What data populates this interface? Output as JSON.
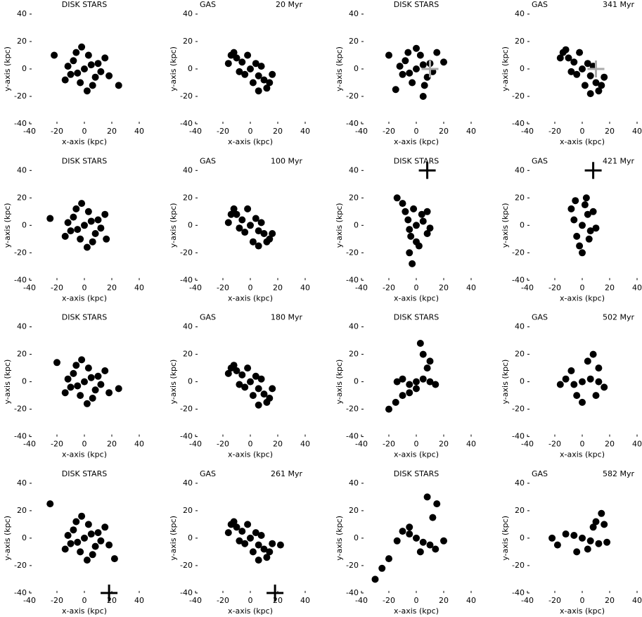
{
  "chart_data": [
    {
      "type": "scatter",
      "title": "DISK STARS",
      "xlabel": "x-axis (kpc)",
      "ylabel": "y-axis (kpc)",
      "xlim": [
        -40,
        40
      ],
      "ylim": [
        -40,
        40
      ],
      "xticks": [
        -40,
        -20,
        0,
        20,
        40
      ],
      "yticks": [
        -40,
        -20,
        0,
        20,
        40
      ],
      "series": [
        {
          "color": "#000000",
          "x": [
            0,
            5,
            -5,
            8,
            -8,
            10,
            -10,
            3,
            -3,
            12,
            -12,
            6,
            -6,
            15,
            -14,
            2,
            -2,
            18,
            -22,
            25
          ],
          "y": [
            0,
            3,
            -3,
            -6,
            6,
            4,
            -4,
            10,
            -10,
            -2,
            2,
            -12,
            12,
            8,
            -8,
            -16,
            16,
            -5,
            10,
            -12
          ]
        }
      ]
    },
    {
      "type": "scatter",
      "title": "GAS",
      "annotation": "20 Myr",
      "xlabel": "x-axis (kpc)",
      "ylabel": "y-axis (kpc)",
      "xlim": [
        -40,
        40
      ],
      "ylim": [
        -40,
        40
      ],
      "xticks": [
        -40,
        -20,
        0,
        20,
        40
      ],
      "yticks": [
        -40,
        -20,
        0,
        20,
        40
      ],
      "series": [
        {
          "color": "#000000",
          "x": [
            0,
            6,
            -6,
            10,
            -10,
            4,
            -4,
            14,
            -14,
            8,
            -8,
            2,
            -2,
            12,
            -12,
            16,
            -16,
            6
          ],
          "y": [
            0,
            -5,
            5,
            -8,
            8,
            4,
            -4,
            -10,
            10,
            2,
            -2,
            -10,
            10,
            -14,
            12,
            -4,
            4,
            -16
          ]
        }
      ]
    },
    {
      "type": "scatter",
      "title": "DISK STARS",
      "xlabel": "x-axis (kpc)",
      "ylabel": "y-axis (kpc)",
      "xlim": [
        -40,
        40
      ],
      "ylim": [
        -40,
        40
      ],
      "xticks": [
        -40,
        -20,
        0,
        20,
        40
      ],
      "yticks": [
        -40,
        -20,
        0,
        20,
        40
      ],
      "series": [
        {
          "color": "#000000",
          "x": [
            0,
            5,
            -5,
            8,
            -8,
            10,
            -10,
            3,
            -3,
            12,
            -12,
            6,
            -6,
            15,
            -20,
            -15,
            5,
            20,
            0
          ],
          "y": [
            0,
            3,
            -3,
            -6,
            6,
            4,
            -4,
            10,
            -10,
            -2,
            2,
            -12,
            12,
            12,
            10,
            -15,
            -20,
            5,
            15
          ]
        }
      ],
      "marker": {
        "x": 10,
        "y": 0,
        "color": "#aaaaaa"
      }
    },
    {
      "type": "scatter",
      "title": "GAS",
      "annotation": "341 Myr",
      "xlabel": "x-axis (kpc)",
      "ylabel": "y-axis (kpc)",
      "xlim": [
        -40,
        40
      ],
      "ylim": [
        -40,
        40
      ],
      "xticks": [
        -40,
        -20,
        0,
        20,
        40
      ],
      "yticks": [
        -40,
        -20,
        0,
        20,
        40
      ],
      "series": [
        {
          "color": "#000000",
          "x": [
            0,
            6,
            -6,
            10,
            -10,
            4,
            -4,
            14,
            -14,
            8,
            -8,
            2,
            -2,
            12,
            -12,
            16,
            -16,
            6
          ],
          "y": [
            0,
            -5,
            5,
            -10,
            8,
            4,
            -4,
            -12,
            12,
            2,
            -2,
            -12,
            12,
            -16,
            14,
            -6,
            8,
            -18
          ]
        }
      ],
      "marker": {
        "x": 10,
        "y": 0,
        "color": "#aaaaaa"
      }
    },
    {
      "type": "scatter",
      "title": "DISK STARS",
      "xlabel": "x-axis (kpc)",
      "ylabel": "y-axis (kpc)",
      "xlim": [
        -40,
        40
      ],
      "ylim": [
        -40,
        40
      ],
      "xticks": [
        -40,
        -20,
        0,
        20,
        40
      ],
      "yticks": [
        -40,
        -20,
        0,
        20,
        40
      ],
      "series": [
        {
          "color": "#000000",
          "x": [
            0,
            5,
            -5,
            8,
            -8,
            10,
            -10,
            3,
            -3,
            12,
            -12,
            6,
            -6,
            15,
            -14,
            2,
            -2,
            16,
            -25
          ],
          "y": [
            0,
            3,
            -3,
            -6,
            6,
            4,
            -4,
            10,
            -10,
            -2,
            2,
            -12,
            12,
            8,
            -8,
            -16,
            16,
            -10,
            5
          ]
        }
      ]
    },
    {
      "type": "scatter",
      "title": "GAS",
      "annotation": "100 Myr",
      "xlabel": "x-axis (kpc)",
      "ylabel": "y-axis (kpc)",
      "xlim": [
        -40,
        40
      ],
      "ylim": [
        -40,
        40
      ],
      "xticks": [
        -40,
        -20,
        0,
        20,
        40
      ],
      "yticks": [
        -40,
        -20,
        0,
        20,
        40
      ],
      "series": [
        {
          "color": "#000000",
          "x": [
            0,
            6,
            -6,
            10,
            -10,
            4,
            -4,
            14,
            -14,
            8,
            -8,
            2,
            -2,
            12,
            -12,
            16,
            -16,
            6
          ],
          "y": [
            0,
            -4,
            4,
            -6,
            8,
            5,
            -5,
            -10,
            8,
            2,
            -2,
            -12,
            12,
            -12,
            12,
            -6,
            2,
            -15
          ]
        }
      ]
    },
    {
      "type": "scatter",
      "title": "DISK STARS",
      "xlabel": "x-axis (kpc)",
      "ylabel": "y-axis (kpc)",
      "xlim": [
        -40,
        40
      ],
      "ylim": [
        -40,
        40
      ],
      "xticks": [
        -40,
        -20,
        0,
        20,
        40
      ],
      "yticks": [
        -40,
        -20,
        0,
        20,
        40
      ],
      "series": [
        {
          "color": "#000000",
          "x": [
            0,
            5,
            -5,
            8,
            -6,
            4,
            -4,
            0,
            -8,
            -10,
            -14,
            -5,
            -3,
            2,
            8,
            -2,
            10
          ],
          "y": [
            0,
            3,
            -3,
            -6,
            4,
            8,
            -8,
            -12,
            10,
            16,
            20,
            -20,
            -28,
            -15,
            10,
            12,
            -2
          ]
        }
      ],
      "marker": {
        "x": 8,
        "y": 40,
        "color": "#000000"
      }
    },
    {
      "type": "scatter",
      "title": "GAS",
      "annotation": "421 Myr",
      "xlabel": "x-axis (kpc)",
      "ylabel": "y-axis (kpc)",
      "xlim": [
        -40,
        40
      ],
      "ylim": [
        -40,
        40
      ],
      "xticks": [
        -40,
        -20,
        0,
        20,
        40
      ],
      "yticks": [
        -40,
        -20,
        0,
        20,
        40
      ],
      "series": [
        {
          "color": "#000000",
          "x": [
            0,
            4,
            -4,
            6,
            -6,
            2,
            -2,
            8,
            -8,
            0,
            5,
            -5,
            10,
            3
          ],
          "y": [
            0,
            8,
            -8,
            -4,
            4,
            15,
            -15,
            10,
            12,
            -20,
            -10,
            18,
            -2,
            20
          ]
        }
      ],
      "marker": {
        "x": 8,
        "y": 40,
        "color": "#000000"
      }
    },
    {
      "type": "scatter",
      "title": "DISK STARS",
      "xlabel": "x-axis (kpc)",
      "ylabel": "y-axis (kpc)",
      "xlim": [
        -40,
        40
      ],
      "ylim": [
        -40,
        40
      ],
      "xticks": [
        -40,
        -20,
        0,
        20,
        40
      ],
      "yticks": [
        -40,
        -20,
        0,
        20,
        40
      ],
      "series": [
        {
          "color": "#000000",
          "x": [
            0,
            5,
            -5,
            8,
            -8,
            10,
            -10,
            3,
            -3,
            12,
            -12,
            6,
            -6,
            15,
            -14,
            2,
            -2,
            18,
            -20,
            25
          ],
          "y": [
            0,
            3,
            -3,
            -6,
            6,
            4,
            -4,
            10,
            -10,
            -2,
            2,
            -12,
            12,
            8,
            -8,
            -16,
            16,
            -8,
            14,
            -5
          ]
        }
      ]
    },
    {
      "type": "scatter",
      "title": "GAS",
      "annotation": "180 Myr",
      "xlabel": "x-axis (kpc)",
      "ylabel": "y-axis (kpc)",
      "xlim": [
        -40,
        40
      ],
      "ylim": [
        -40,
        40
      ],
      "xticks": [
        -40,
        -20,
        0,
        20,
        40
      ],
      "yticks": [
        -40,
        -20,
        0,
        20,
        40
      ],
      "series": [
        {
          "color": "#000000",
          "x": [
            0,
            6,
            -6,
            10,
            -10,
            4,
            -4,
            14,
            -14,
            8,
            -8,
            2,
            -2,
            12,
            -12,
            16,
            -16,
            6
          ],
          "y": [
            0,
            -5,
            5,
            -9,
            8,
            4,
            -4,
            -12,
            10,
            2,
            -2,
            -10,
            10,
            -15,
            12,
            -5,
            6,
            -17
          ]
        }
      ]
    },
    {
      "type": "scatter",
      "title": "DISK STARS",
      "xlabel": "x-axis (kpc)",
      "ylabel": "y-axis (kpc)",
      "xlim": [
        -40,
        40
      ],
      "ylim": [
        -40,
        40
      ],
      "xticks": [
        -40,
        -20,
        0,
        20,
        40
      ],
      "yticks": [
        -40,
        -20,
        0,
        20,
        40
      ],
      "series": [
        {
          "color": "#000000",
          "x": [
            0,
            5,
            -5,
            10,
            -10,
            14,
            -14,
            0,
            5,
            10,
            -15,
            -20,
            -10,
            3,
            8,
            -5
          ],
          "y": [
            0,
            2,
            -2,
            0,
            2,
            -2,
            0,
            -5,
            20,
            15,
            -15,
            -20,
            -10,
            28,
            10,
            -8
          ]
        }
      ]
    },
    {
      "type": "scatter",
      "title": "GAS",
      "annotation": "502 Myr",
      "xlabel": "x-axis (kpc)",
      "ylabel": "y-axis (kpc)",
      "xlim": [
        -40,
        40
      ],
      "ylim": [
        -40,
        40
      ],
      "xticks": [
        -40,
        -20,
        0,
        20,
        40
      ],
      "yticks": [
        -40,
        -20,
        0,
        20,
        40
      ],
      "series": [
        {
          "color": "#000000",
          "x": [
            0,
            6,
            -6,
            12,
            -12,
            16,
            -16,
            4,
            8,
            12,
            -4,
            0,
            10,
            -8
          ],
          "y": [
            0,
            2,
            -2,
            0,
            2,
            -4,
            -2,
            15,
            20,
            10,
            -10,
            -15,
            -10,
            8
          ]
        }
      ]
    },
    {
      "type": "scatter",
      "title": "DISK STARS",
      "xlabel": "x-axis (kpc)",
      "ylabel": "y-axis (kpc)",
      "xlim": [
        -40,
        40
      ],
      "ylim": [
        -40,
        40
      ],
      "xticks": [
        -40,
        -20,
        0,
        20,
        40
      ],
      "yticks": [
        -40,
        -20,
        0,
        20,
        40
      ],
      "series": [
        {
          "color": "#000000",
          "x": [
            0,
            5,
            -5,
            8,
            -8,
            10,
            -10,
            3,
            -3,
            12,
            -12,
            6,
            -6,
            15,
            -14,
            2,
            -2,
            18,
            -25,
            22
          ],
          "y": [
            0,
            3,
            -3,
            -6,
            6,
            4,
            -4,
            10,
            -10,
            -2,
            2,
            -12,
            12,
            8,
            -8,
            -16,
            16,
            -5,
            25,
            -15
          ]
        }
      ],
      "marker": {
        "x": 18,
        "y": -40,
        "color": "#000000"
      }
    },
    {
      "type": "scatter",
      "title": "GAS",
      "annotation": "261 Myr",
      "xlabel": "x-axis (kpc)",
      "ylabel": "y-axis (kpc)",
      "xlim": [
        -40,
        40
      ],
      "ylim": [
        -40,
        40
      ],
      "xticks": [
        -40,
        -20,
        0,
        20,
        40
      ],
      "yticks": [
        -40,
        -20,
        0,
        20,
        40
      ],
      "series": [
        {
          "color": "#000000",
          "x": [
            0,
            6,
            -6,
            10,
            -10,
            4,
            -4,
            14,
            -14,
            8,
            -8,
            2,
            -2,
            12,
            -12,
            16,
            -16,
            6,
            22
          ],
          "y": [
            0,
            -5,
            5,
            -8,
            8,
            4,
            -4,
            -10,
            10,
            2,
            -2,
            -10,
            10,
            -14,
            12,
            -4,
            4,
            -16,
            -5
          ]
        }
      ],
      "marker": {
        "x": 18,
        "y": -40,
        "color": "#000000"
      }
    },
    {
      "type": "scatter",
      "title": "DISK STARS",
      "xlabel": "x-axis (kpc)",
      "ylabel": "y-axis (kpc)",
      "xlim": [
        -40,
        40
      ],
      "ylim": [
        -40,
        40
      ],
      "xticks": [
        -40,
        -20,
        0,
        20,
        40
      ],
      "yticks": [
        -40,
        -20,
        0,
        20,
        40
      ],
      "series": [
        {
          "color": "#000000",
          "x": [
            0,
            5,
            -5,
            10,
            -10,
            14,
            -14,
            -20,
            -25,
            -30,
            12,
            15,
            8,
            20,
            3,
            -5
          ],
          "y": [
            0,
            -3,
            3,
            -5,
            5,
            -8,
            -2,
            -15,
            -22,
            -30,
            15,
            25,
            30,
            -2,
            -10,
            8
          ]
        }
      ]
    },
    {
      "type": "scatter",
      "title": "GAS",
      "annotation": "582 Myr",
      "xlabel": "x-axis (kpc)",
      "ylabel": "y-axis (kpc)",
      "xlim": [
        -40,
        40
      ],
      "ylim": [
        -40,
        40
      ],
      "xticks": [
        -40,
        -20,
        0,
        20,
        40
      ],
      "yticks": [
        -40,
        -20,
        0,
        20,
        40
      ],
      "series": [
        {
          "color": "#000000",
          "x": [
            0,
            6,
            -6,
            12,
            -12,
            18,
            -18,
            -22,
            10,
            14,
            4,
            -4,
            8,
            16
          ],
          "y": [
            0,
            -2,
            2,
            -4,
            3,
            -3,
            -5,
            0,
            12,
            18,
            -8,
            -10,
            8,
            10
          ]
        }
      ]
    }
  ]
}
